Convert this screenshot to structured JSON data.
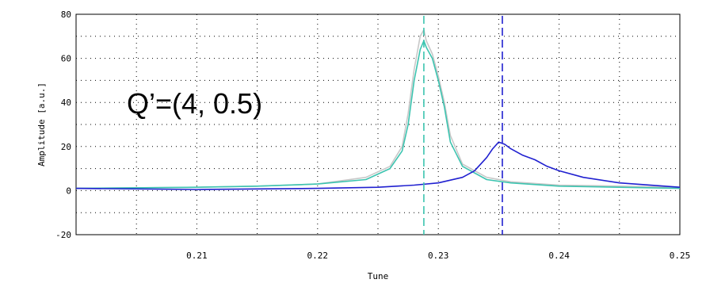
{
  "chart_data": {
    "type": "line",
    "xlabel": "Tune",
    "ylabel": "Amplitude [a.u.]",
    "xlim": [
      0.2,
      0.25
    ],
    "ylim": [
      -20,
      80
    ],
    "xticks": [
      "0.21",
      "0.22",
      "0.23",
      "0.24",
      "0.25"
    ],
    "yticks": [
      "-20",
      "0",
      "20",
      "40",
      "60",
      "80"
    ],
    "grid": true,
    "annotation": "Q’=(4, 0.5)",
    "colors": {
      "teal": "#3cc4b0",
      "gray": "#c8c8c8",
      "blue": "#2020d0"
    },
    "series": [
      {
        "color": "gray",
        "x": [
          0.2,
          0.21,
          0.215,
          0.22,
          0.224,
          0.226,
          0.227,
          0.2275,
          0.228,
          0.2285,
          0.2288,
          0.229,
          0.2295,
          0.23,
          0.2305,
          0.231,
          0.232,
          0.234,
          0.236,
          0.24,
          0.245,
          0.25
        ],
        "y": [
          1,
          1.5,
          2,
          3,
          6,
          11,
          20,
          35,
          55,
          70,
          73,
          68,
          62,
          52,
          40,
          25,
          12,
          6,
          4,
          2.5,
          2,
          1.5
        ]
      },
      {
        "color": "teal",
        "x": [
          0.2,
          0.21,
          0.215,
          0.22,
          0.224,
          0.226,
          0.227,
          0.2275,
          0.228,
          0.2285,
          0.2288,
          0.229,
          0.2295,
          0.23,
          0.2305,
          0.231,
          0.232,
          0.234,
          0.236,
          0.24,
          0.245,
          0.25
        ],
        "y": [
          1,
          1.5,
          2,
          3,
          5,
          10,
          18,
          30,
          50,
          64,
          68,
          65,
          60,
          50,
          38,
          22,
          11,
          5,
          3.5,
          2,
          1.5,
          1
        ]
      },
      {
        "color": "blue",
        "x": [
          0.2,
          0.21,
          0.22,
          0.225,
          0.228,
          0.23,
          0.232,
          0.233,
          0.234,
          0.2345,
          0.235,
          0.2355,
          0.236,
          0.237,
          0.238,
          0.239,
          0.24,
          0.242,
          0.245,
          0.25
        ],
        "y": [
          1,
          0.5,
          1,
          1.5,
          2.5,
          3.5,
          6,
          9,
          15,
          19,
          22,
          21,
          19,
          16,
          14,
          11,
          9,
          6,
          3.5,
          1.5
        ]
      }
    ],
    "vlines": [
      {
        "x": 0.2288,
        "color": "teal"
      },
      {
        "x": 0.2353,
        "color": "blue"
      }
    ]
  }
}
